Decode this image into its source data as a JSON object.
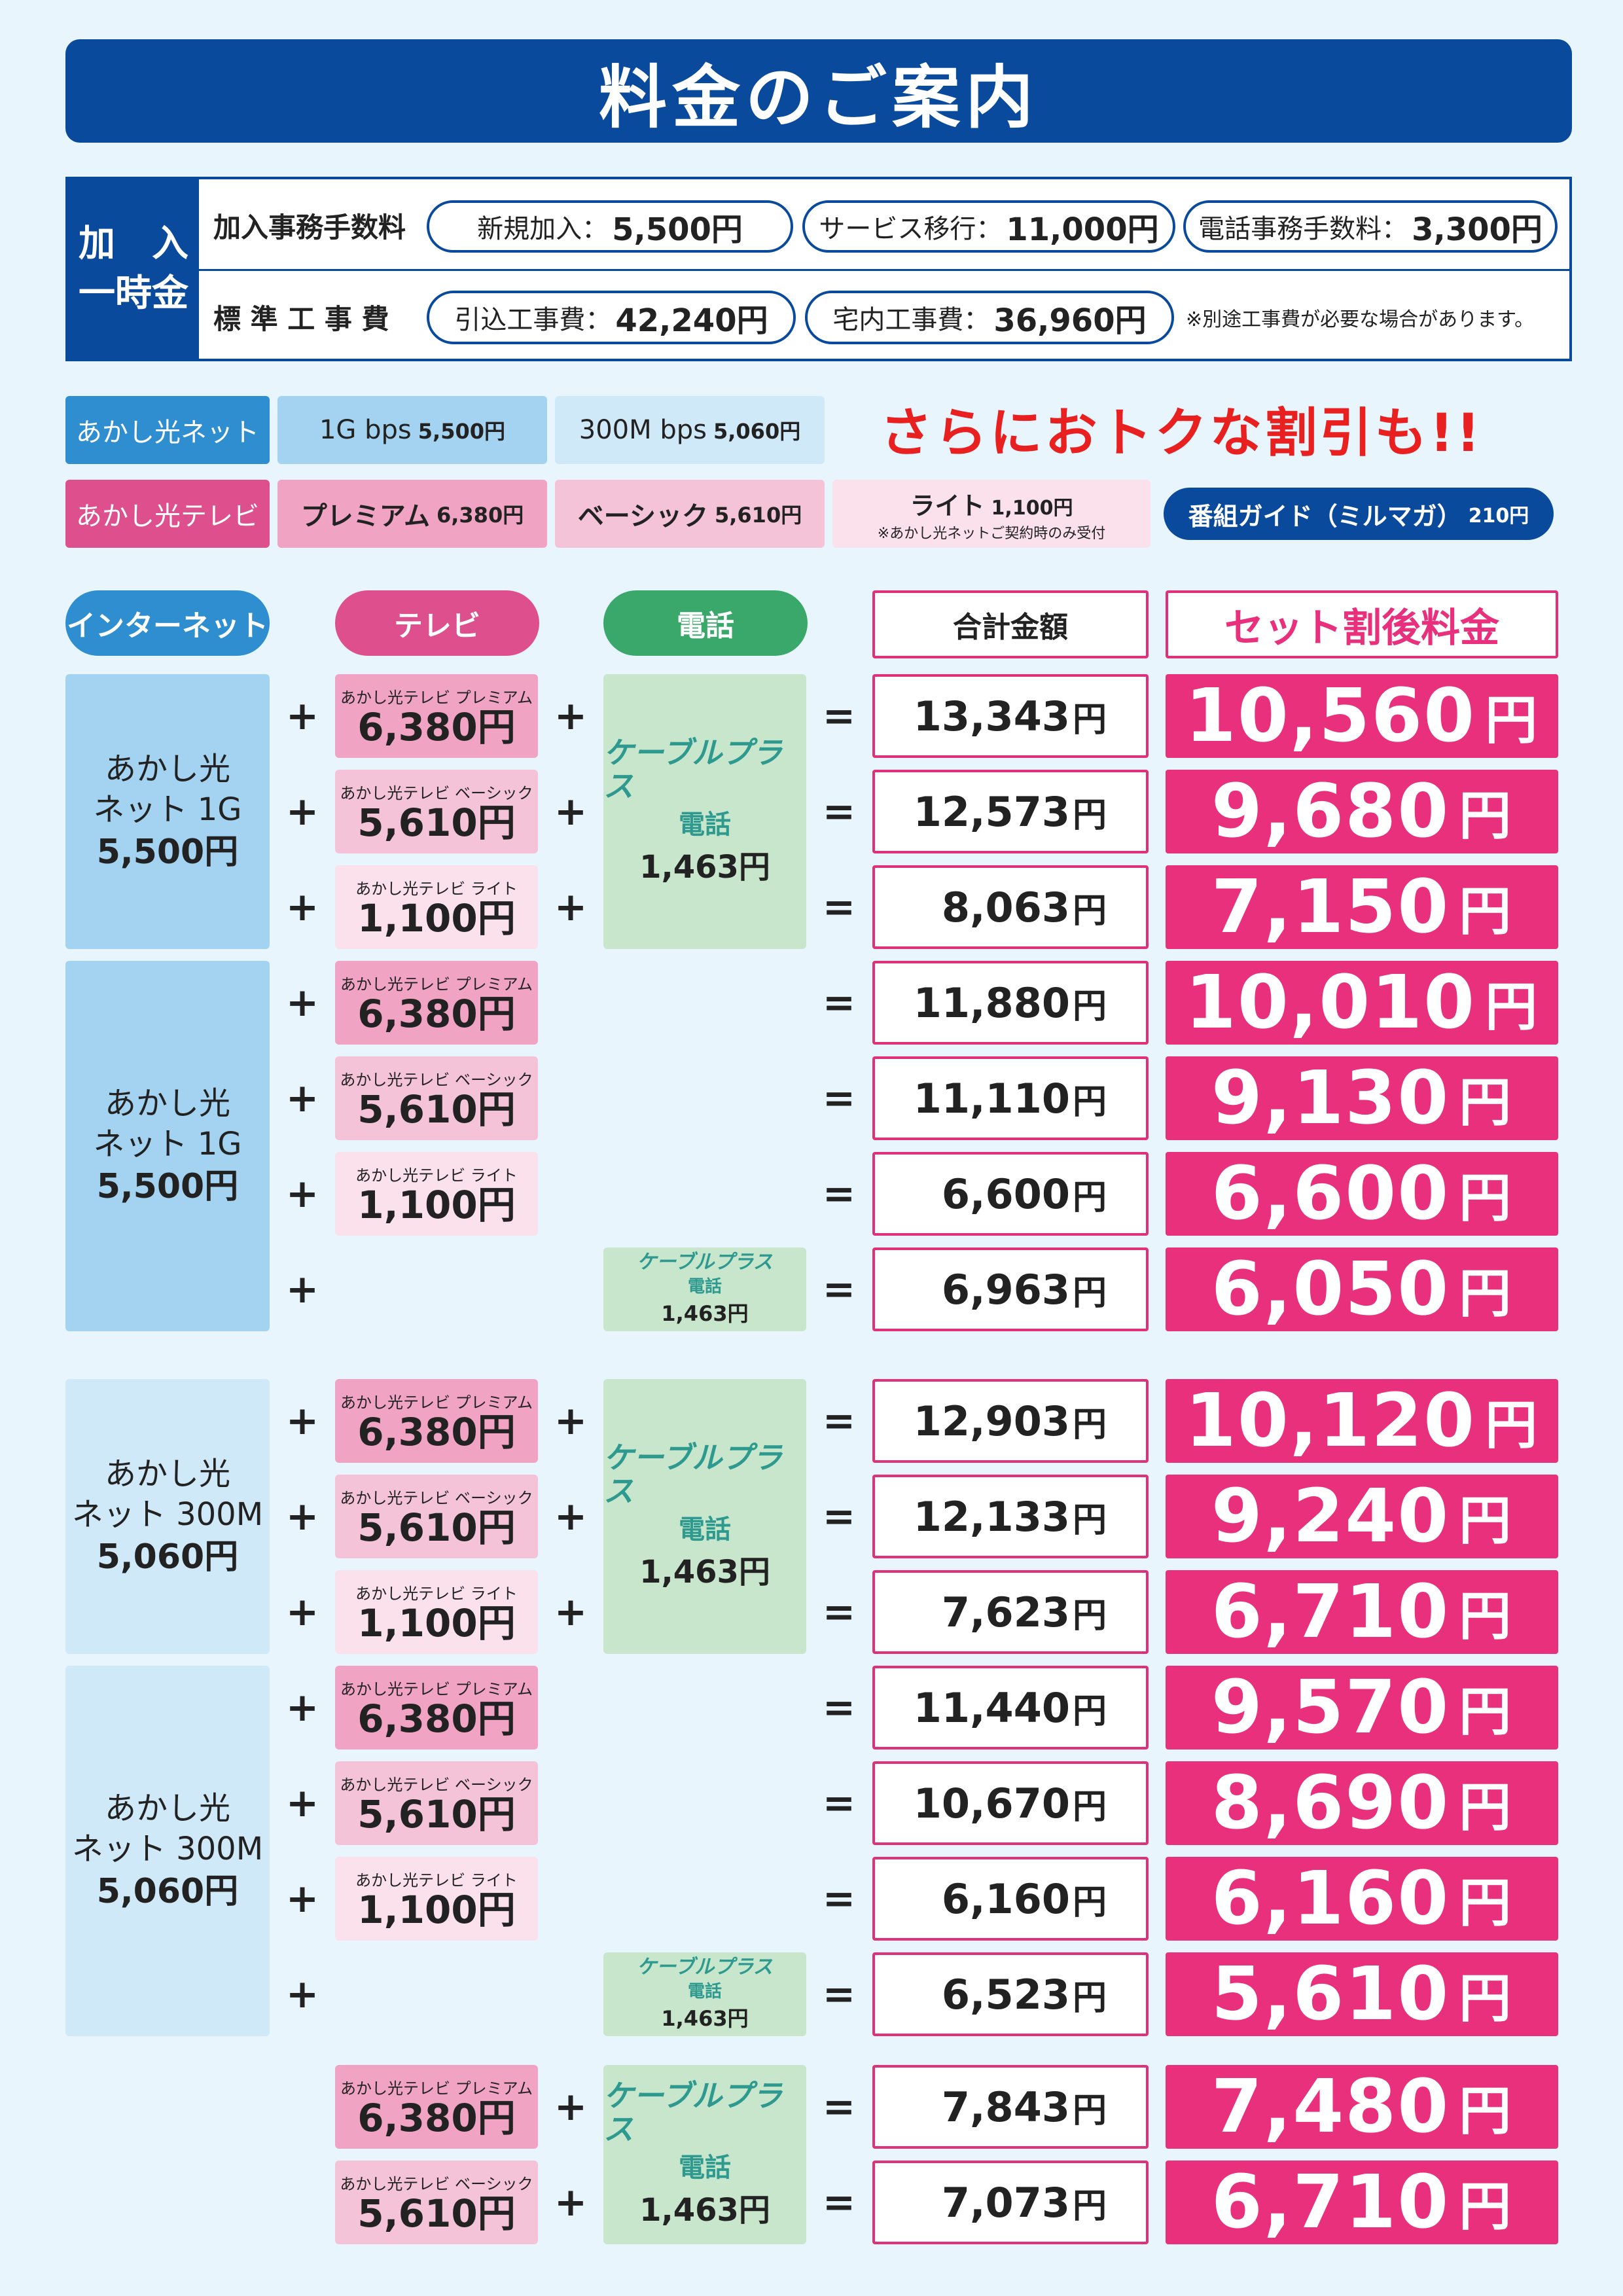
{
  "title": "料金のご案内",
  "fees": {
    "side_line1": "加　入",
    "side_line2": "一時金",
    "row1_label": "加入事務手数料",
    "row1_items": [
      {
        "label": "新規加入：",
        "value": "5,500円"
      },
      {
        "label": "サービス移行：",
        "value": "11,000円"
      },
      {
        "label": "電話事務手数料：",
        "value": "3,300円"
      }
    ],
    "row2_label": "標 準 工 事 費",
    "row2_items": [
      {
        "label": "引込工事費：",
        "value": "42,240円"
      },
      {
        "label": "宅内工事費：",
        "value": "36,960円"
      }
    ],
    "row2_note": "※別途工事費が必要な場合があります。"
  },
  "services": {
    "net_tag": "あかし光ネット",
    "net_1g": {
      "name": "1G bps",
      "price": "5,500円"
    },
    "net_300m": {
      "name": "300M bps",
      "price": "5,060円"
    },
    "promo": "さらにおトクな割引も!!",
    "tv_tag": "あかし光テレビ",
    "tv_premium": {
      "name": "プレミアム",
      "price": "6,380円"
    },
    "tv_basic": {
      "name": "ベーシック",
      "price": "5,610円"
    },
    "tv_lite": {
      "name": "ライト",
      "price": "1,100円",
      "note": "※あかし光ネットご契約時のみ受付"
    },
    "guide": {
      "name": "番組ガイド（ミルマガ）",
      "price": "210円"
    }
  },
  "headers": {
    "internet": "インターネット",
    "tv": "テレビ",
    "phone": "電話",
    "total": "合計金額",
    "after": "セット割後料金"
  },
  "labels": {
    "tv_premium_small": "あかし光テレビ プレミアム",
    "tv_basic_small": "あかし光テレビ ベーシック",
    "tv_lite_small": "あかし光テレビ ライト",
    "tv_premium_price": "6,380円",
    "tv_basic_price": "5,610円",
    "tv_lite_price": "1,100円",
    "cable_logo": "ケーブルプラス",
    "cable_sub": "電話",
    "cable_price": "1,463円",
    "plus": "+",
    "equals": "=",
    "yen": "円"
  },
  "internet_blocks": [
    {
      "line1": "あかし光",
      "line2": "ネット 1G",
      "price": "5,500円"
    },
    {
      "line1": "あかし光",
      "line2": "ネット 1G",
      "price": "5,500円"
    },
    {
      "line1": "あかし光",
      "line2": "ネット 300M",
      "price": "5,060円"
    },
    {
      "line1": "あかし光",
      "line2": "ネット 300M",
      "price": "5,060円"
    }
  ],
  "rows": [
    {
      "total": "13,343",
      "after": "10,560"
    },
    {
      "total": "12,573",
      "after": "9,680"
    },
    {
      "total": "8,063",
      "after": "7,150"
    },
    {
      "total": "11,880",
      "after": "10,010"
    },
    {
      "total": "11,110",
      "after": "9,130"
    },
    {
      "total": "6,600",
      "after": "6,600"
    },
    {
      "total": "6,963",
      "after": "6,050"
    },
    {
      "total": "12,903",
      "after": "10,120"
    },
    {
      "total": "12,133",
      "after": "9,240"
    },
    {
      "total": "7,623",
      "after": "6,710"
    },
    {
      "total": "11,440",
      "after": "9,570"
    },
    {
      "total": "10,670",
      "after": "8,690"
    },
    {
      "total": "6,160",
      "after": "6,160"
    },
    {
      "total": "6,523",
      "after": "5,610"
    },
    {
      "total": "7,843",
      "after": "7,480"
    },
    {
      "total": "7,073",
      "after": "6,710"
    }
  ]
}
